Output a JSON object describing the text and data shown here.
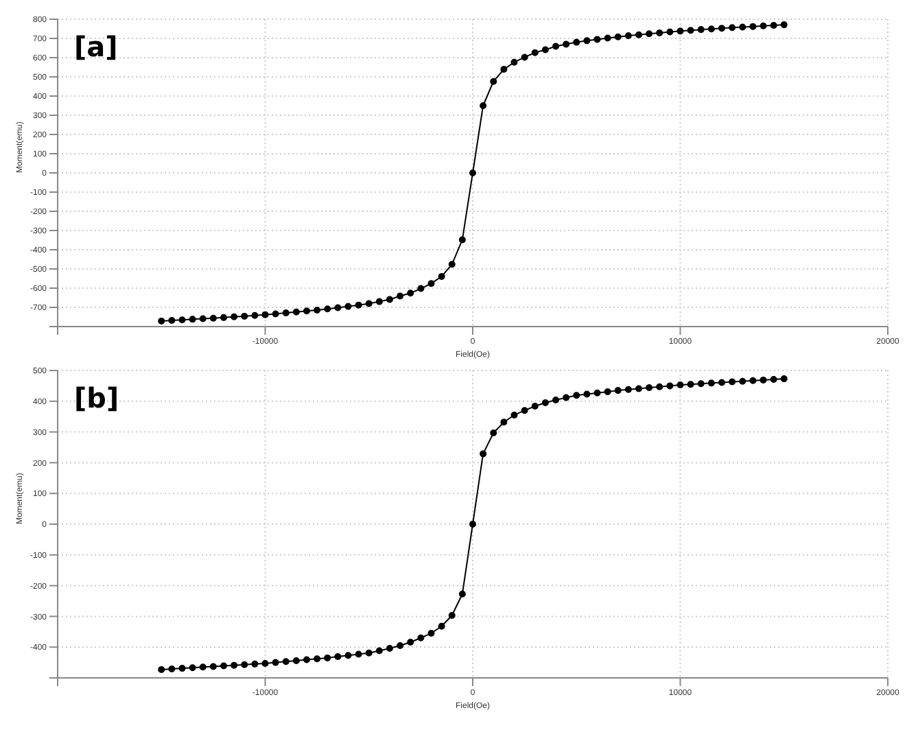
{
  "chart_data": [
    {
      "type": "line",
      "annotations": [
        "[a]"
      ],
      "xlabel": "Field(Oe)",
      "ylabel": "Moment(emu)",
      "color": "#000000",
      "marker": "circle",
      "grid": true,
      "x": [
        -15000,
        -14500,
        -14000,
        -13500,
        -13000,
        -12500,
        -12000,
        -11500,
        -11000,
        -10500,
        -10000,
        -9500,
        -9000,
        -8500,
        -8000,
        -7500,
        -7000,
        -6500,
        -6000,
        -5500,
        -5000,
        -4500,
        -4000,
        -3500,
        -3000,
        -2500,
        -2000,
        -1500,
        -1000,
        -500,
        0,
        500,
        1000,
        1500,
        2000,
        2500,
        3000,
        3500,
        4000,
        4500,
        5000,
        5500,
        6000,
        6500,
        7000,
        7500,
        8000,
        8500,
        9000,
        9500,
        10000,
        10500,
        11000,
        11500,
        12000,
        12500,
        13000,
        13500,
        14000,
        14500,
        15000
      ],
      "values": [
        -771,
        -768,
        -765,
        -762,
        -759,
        -756,
        -753,
        -749,
        -746,
        -742,
        -738,
        -734,
        -729,
        -724,
        -719,
        -714,
        -708,
        -702,
        -695,
        -688,
        -680,
        -670,
        -659,
        -641,
        -626,
        -602,
        -576,
        -539,
        -476,
        -348,
        0,
        350,
        476,
        539,
        576,
        602,
        626,
        641,
        659,
        670,
        680,
        688,
        695,
        702,
        708,
        714,
        719,
        724,
        729,
        734,
        738,
        742,
        746,
        749,
        753,
        756,
        759,
        762,
        765,
        768,
        771
      ],
      "xlim": [
        -20000,
        20000
      ],
      "xticks": [
        {
          "value": -20000,
          "label": null
        },
        -10000,
        0,
        10000,
        20000
      ],
      "ylim": [
        -800,
        800
      ],
      "yticks": [
        {
          "value": -800,
          "label": null
        },
        -700,
        -600,
        -500,
        -400,
        -300,
        -200,
        -100,
        0,
        100,
        200,
        300,
        400,
        500,
        600,
        700,
        800
      ]
    },
    {
      "type": "line",
      "annotations": [
        "[b]"
      ],
      "xlabel": "Field(Oe)",
      "ylabel": "Moment(emu)",
      "color": "#000000",
      "marker": "circle",
      "grid": true,
      "x": [
        -15000,
        -14500,
        -14000,
        -13500,
        -13000,
        -12500,
        -12000,
        -11500,
        -11000,
        -10500,
        -10000,
        -9500,
        -9000,
        -8500,
        -8000,
        -7500,
        -7000,
        -6500,
        -6000,
        -5500,
        -5000,
        -4500,
        -4000,
        -3500,
        -3000,
        -2500,
        -2000,
        -1500,
        -1000,
        -500,
        0,
        500,
        1000,
        1500,
        2000,
        2500,
        3000,
        3500,
        4000,
        4500,
        5000,
        5500,
        6000,
        6500,
        7000,
        7500,
        8000,
        8500,
        9000,
        9500,
        10000,
        10500,
        11000,
        11500,
        12000,
        12500,
        13000,
        13500,
        14000,
        14500,
        15000
      ],
      "values": [
        -473,
        -471,
        -469,
        -467,
        -465,
        -463,
        -461,
        -459,
        -457,
        -455,
        -453,
        -450,
        -447,
        -444,
        -441,
        -438,
        -435,
        -431,
        -427,
        -423,
        -419,
        -412,
        -404,
        -395,
        -384,
        -370,
        -355,
        -332,
        -297,
        -227,
        0,
        229,
        297,
        332,
        355,
        370,
        384,
        395,
        404,
        412,
        419,
        423,
        427,
        431,
        435,
        438,
        441,
        444,
        447,
        450,
        453,
        455,
        457,
        459,
        461,
        463,
        465,
        467,
        469,
        471,
        473
      ],
      "xlim": [
        -20000,
        20000
      ],
      "xticks": [
        {
          "value": -20000,
          "label": null
        },
        -10000,
        0,
        10000,
        20000
      ],
      "ylim": [
        -500,
        500
      ],
      "yticks": [
        {
          "value": -500,
          "label": null
        },
        -400,
        -300,
        -200,
        -100,
        0,
        100,
        200,
        300,
        400,
        500
      ]
    }
  ]
}
